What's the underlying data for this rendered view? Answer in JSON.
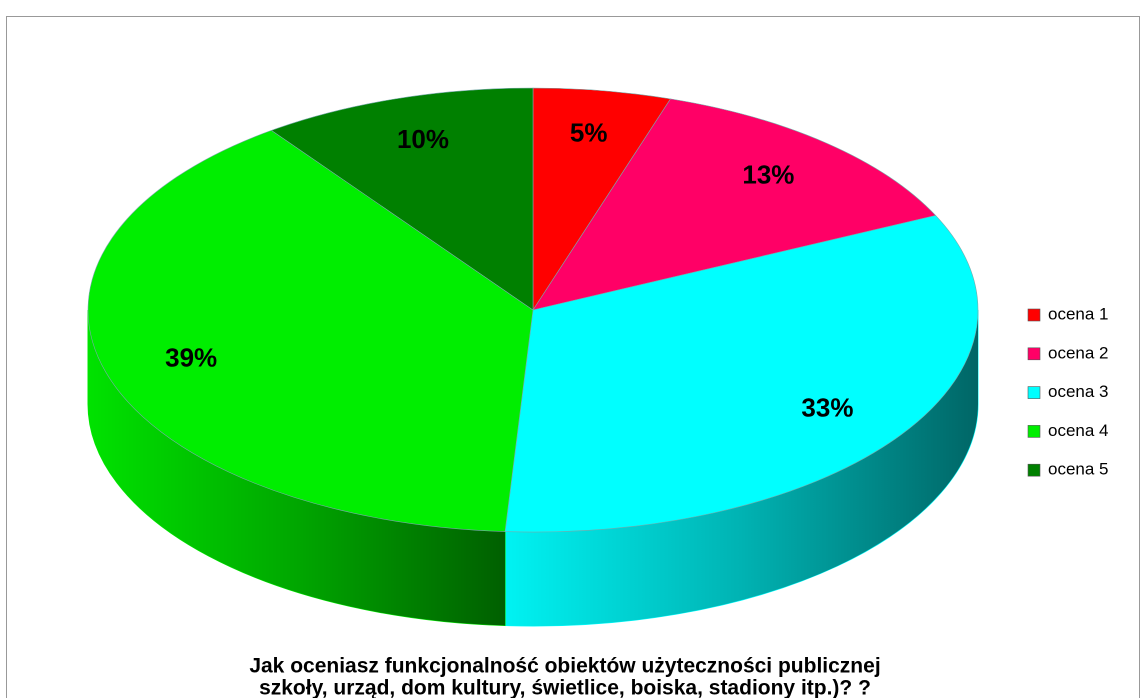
{
  "chart_data": {
    "type": "pie3d",
    "title": [
      "Jak oceniasz funkcjonalność obiektów użyteczności publicznej",
      "szkoły, urząd, dom kultury, świetlice, boiska, stadiony itp.)? ?"
    ],
    "categories": [
      "ocena 1",
      "ocena 2",
      "ocena 3",
      "ocena 4",
      "ocena 5"
    ],
    "values": [
      5,
      13,
      33,
      39,
      10
    ],
    "value_labels": [
      "5%",
      "13%",
      "33%",
      "39%",
      "10%"
    ],
    "colors": [
      "#ff0000",
      "#ff0066",
      "#00ffff",
      "#00ee00",
      "#008000"
    ],
    "legend": "right"
  }
}
